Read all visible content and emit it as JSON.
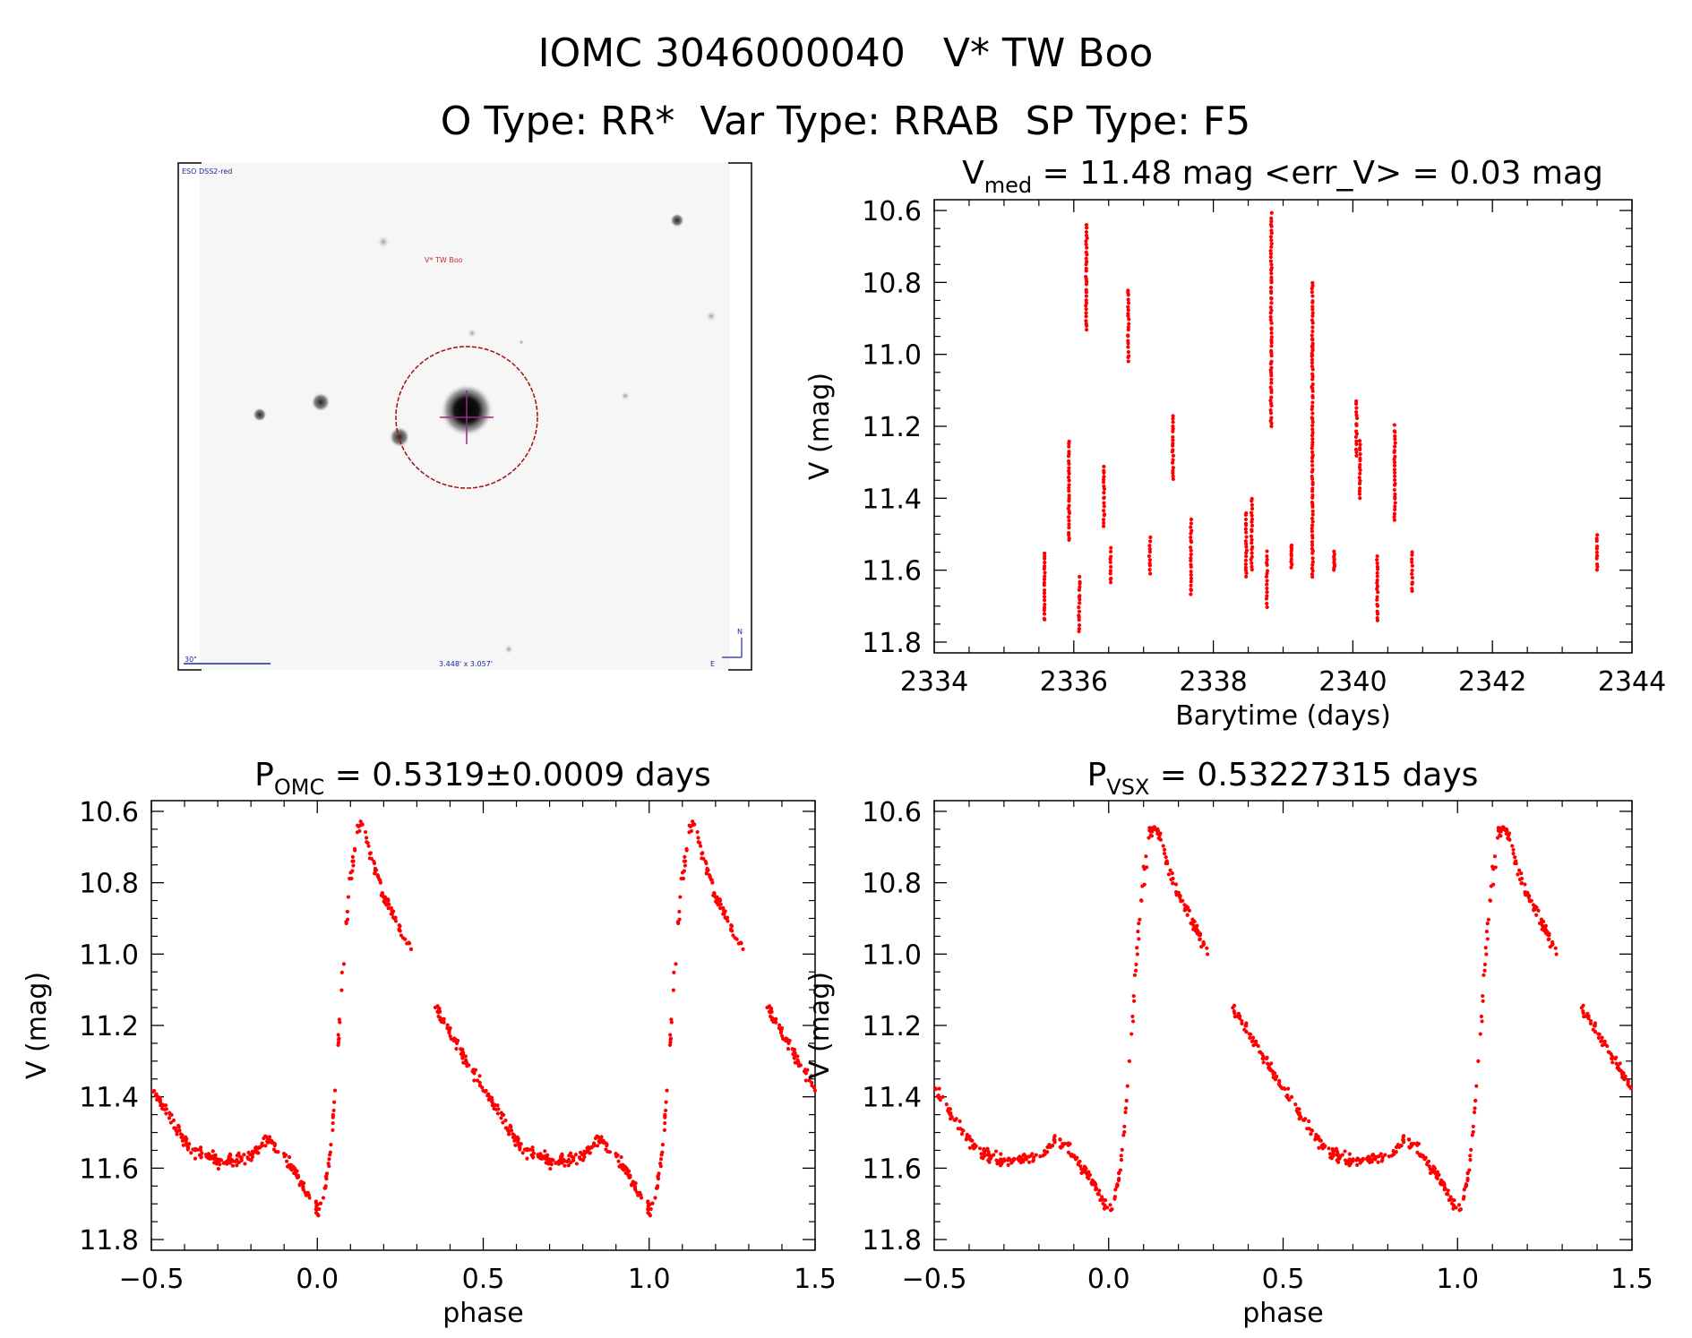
{
  "header": {
    "title_line1": "IOMC 3046000040   V* TW Boo",
    "title_line2": "O Type: RR*  Var Type: RRAB  SP Type: F5"
  },
  "image_panel": {
    "survey_label": "ESO DSS2-red",
    "target_label": "V* TW Boo",
    "scale_label": "30\"",
    "fov_label": "3.448' x 3.057'",
    "compass_n": "N",
    "compass_e": "E"
  },
  "colors": {
    "points": "#ff0000",
    "circle": "#a01010",
    "axes": "#000000"
  },
  "chart_data": [
    {
      "id": "timeseries",
      "type": "scatter",
      "title_prefix": "V",
      "title_sub": "med",
      "title_suffix": " = 11.48 mag <err_V> = 0.03 mag",
      "xlabel": "Barytime (days)",
      "ylabel": "V (mag)",
      "xlim": [
        2334,
        2344
      ],
      "ylim": [
        11.83,
        10.57
      ],
      "xticks": [
        2334,
        2336,
        2338,
        2340,
        2342,
        2344
      ],
      "xtick_labels": [
        "2334",
        "2336",
        "2338",
        "2340",
        "2342",
        "2344"
      ],
      "yticks": [
        10.6,
        10.8,
        11.0,
        11.2,
        11.4,
        11.6,
        11.8
      ],
      "ytick_labels": [
        "10.6",
        "10.8",
        "11.0",
        "11.2",
        "11.4",
        "11.6",
        "11.8"
      ],
      "clusters": [
        [
          2335.58,
          11.55,
          11.74
        ],
        [
          2335.93,
          11.24,
          11.52
        ],
        [
          2336.08,
          11.62,
          11.77
        ],
        [
          2336.18,
          10.64,
          10.93
        ],
        [
          2336.43,
          11.31,
          11.48
        ],
        [
          2336.53,
          11.54,
          11.64
        ],
        [
          2336.78,
          10.82,
          11.02
        ],
        [
          2337.09,
          11.51,
          11.61
        ],
        [
          2337.42,
          11.17,
          11.35
        ],
        [
          2337.68,
          11.46,
          11.67
        ],
        [
          2338.47,
          11.44,
          11.62
        ],
        [
          2338.55,
          11.4,
          11.6
        ],
        [
          2338.77,
          11.55,
          11.7
        ],
        [
          2338.83,
          10.61,
          11.2
        ],
        [
          2339.12,
          11.53,
          11.59
        ],
        [
          2339.42,
          10.96,
          11.62
        ],
        [
          2339.42,
          10.8,
          11.0
        ],
        [
          2339.73,
          11.55,
          11.6
        ],
        [
          2340.05,
          11.13,
          11.28
        ],
        [
          2340.1,
          11.24,
          11.4
        ],
        [
          2340.35,
          11.56,
          11.74
        ],
        [
          2340.6,
          11.2,
          11.46
        ],
        [
          2340.85,
          11.55,
          11.66
        ],
        [
          2343.5,
          11.5,
          11.6
        ]
      ]
    },
    {
      "id": "phase_omc",
      "type": "scatter",
      "title_prefix": "P",
      "title_sub": "OMC",
      "title_suffix": " = 0.5319±0.0009 days",
      "xlabel": "phase",
      "ylabel": "V (mag)",
      "xlim": [
        -0.5,
        1.5
      ],
      "ylim": [
        11.83,
        10.57
      ],
      "xticks": [
        -0.5,
        0.0,
        0.5,
        1.0,
        1.5
      ],
      "xtick_labels": [
        "−0.5",
        "0.0",
        "0.5",
        "1.0",
        "1.5"
      ],
      "yticks": [
        10.6,
        10.8,
        11.0,
        11.2,
        11.4,
        11.6,
        11.8
      ],
      "ytick_labels": [
        "10.6",
        "10.8",
        "11.0",
        "11.2",
        "11.4",
        "11.6",
        "11.8"
      ],
      "curve": [
        [
          0.0,
          11.72
        ],
        [
          0.02,
          11.68
        ],
        [
          0.04,
          11.55
        ],
        [
          0.06,
          11.3
        ],
        [
          0.08,
          11.0
        ],
        [
          0.1,
          10.78
        ],
        [
          0.12,
          10.66
        ],
        [
          0.135,
          10.63
        ],
        [
          0.16,
          10.72
        ],
        [
          0.2,
          10.84
        ],
        [
          0.25,
          10.93
        ],
        [
          0.285,
          11.0
        ],
        [
          0.35,
          11.14
        ],
        [
          0.45,
          11.3
        ],
        [
          0.55,
          11.45
        ],
        [
          0.62,
          11.55
        ],
        [
          0.7,
          11.58
        ],
        [
          0.8,
          11.57
        ],
        [
          0.85,
          11.52
        ],
        [
          0.89,
          11.55
        ],
        [
          0.94,
          11.62
        ],
        [
          1.0,
          11.72
        ]
      ],
      "gap": [
        0.285,
        0.355
      ]
    },
    {
      "id": "phase_vsx",
      "type": "scatter",
      "title_prefix": "P",
      "title_sub": "VSX",
      "title_suffix": " = 0.53227315 days",
      "xlabel": "phase",
      "ylabel": "V (mag)",
      "xlim": [
        -0.5,
        1.5
      ],
      "ylim": [
        11.83,
        10.57
      ],
      "xticks": [
        -0.5,
        0.0,
        0.5,
        1.0,
        1.5
      ],
      "xtick_labels": [
        "−0.5",
        "0.0",
        "0.5",
        "1.0",
        "1.5"
      ],
      "yticks": [
        10.6,
        10.8,
        11.0,
        11.2,
        11.4,
        11.6,
        11.8
      ],
      "ytick_labels": [
        "10.6",
        "10.8",
        "11.0",
        "11.2",
        "11.4",
        "11.6",
        "11.8"
      ],
      "curve": [
        [
          0.0,
          11.72
        ],
        [
          0.02,
          11.68
        ],
        [
          0.04,
          11.55
        ],
        [
          0.06,
          11.3
        ],
        [
          0.08,
          11.0
        ],
        [
          0.1,
          10.78
        ],
        [
          0.12,
          10.66
        ],
        [
          0.135,
          10.63
        ],
        [
          0.16,
          10.72
        ],
        [
          0.2,
          10.84
        ],
        [
          0.25,
          10.93
        ],
        [
          0.285,
          11.0
        ],
        [
          0.35,
          11.14
        ],
        [
          0.45,
          11.3
        ],
        [
          0.55,
          11.45
        ],
        [
          0.62,
          11.55
        ],
        [
          0.7,
          11.58
        ],
        [
          0.8,
          11.57
        ],
        [
          0.85,
          11.52
        ],
        [
          0.89,
          11.55
        ],
        [
          0.94,
          11.62
        ],
        [
          1.0,
          11.72
        ]
      ],
      "gap": [
        0.285,
        0.355
      ]
    }
  ]
}
